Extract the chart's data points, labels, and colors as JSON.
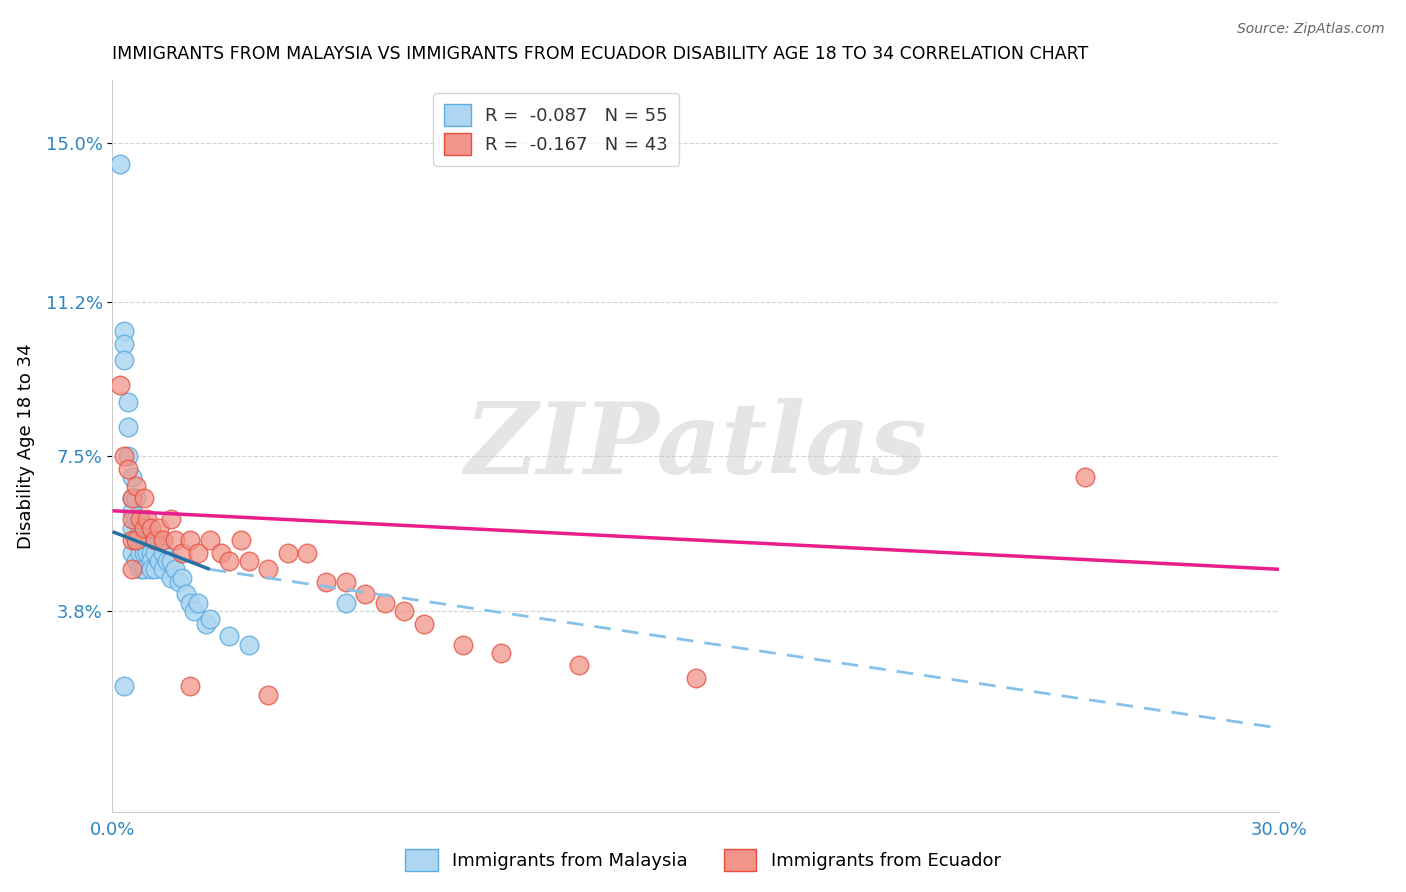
{
  "title": "IMMIGRANTS FROM MALAYSIA VS IMMIGRANTS FROM ECUADOR DISABILITY AGE 18 TO 34 CORRELATION CHART",
  "source": "Source: ZipAtlas.com",
  "ylabel": "Disability Age 18 to 34",
  "xlim": [
    0.0,
    0.3
  ],
  "ylim": [
    -0.01,
    0.165
  ],
  "ytick_positions": [
    0.038,
    0.075,
    0.112,
    0.15
  ],
  "ytick_labels": [
    "3.8%",
    "7.5%",
    "11.2%",
    "15.0%"
  ],
  "malaysia_color": "#AED6F1",
  "ecuador_color": "#F1948A",
  "malaysia_edge": "#5DADE2",
  "ecuador_edge": "#E74C3C",
  "malaysia_line_color": "#2471A3",
  "malaysia_dash_color": "#85C1E9",
  "ecuador_line_color": "#E91E8C",
  "R_malaysia": -0.087,
  "N_malaysia": 55,
  "R_ecuador": -0.167,
  "N_ecuador": 43,
  "legend_labels": [
    "Immigrants from Malaysia",
    "Immigrants from Ecuador"
  ],
  "watermark": "ZIPatlas",
  "malaysia_scatter_x": [
    0.002,
    0.003,
    0.003,
    0.003,
    0.004,
    0.004,
    0.004,
    0.005,
    0.005,
    0.005,
    0.005,
    0.005,
    0.006,
    0.006,
    0.006,
    0.006,
    0.007,
    0.007,
    0.007,
    0.007,
    0.007,
    0.008,
    0.008,
    0.008,
    0.008,
    0.009,
    0.009,
    0.009,
    0.01,
    0.01,
    0.01,
    0.01,
    0.011,
    0.011,
    0.011,
    0.012,
    0.012,
    0.013,
    0.013,
    0.014,
    0.015,
    0.015,
    0.016,
    0.017,
    0.018,
    0.019,
    0.02,
    0.021,
    0.022,
    0.024,
    0.025,
    0.03,
    0.035,
    0.06,
    0.003
  ],
  "malaysia_scatter_y": [
    0.145,
    0.105,
    0.102,
    0.098,
    0.088,
    0.082,
    0.075,
    0.07,
    0.065,
    0.062,
    0.058,
    0.052,
    0.065,
    0.06,
    0.055,
    0.05,
    0.06,
    0.058,
    0.055,
    0.052,
    0.048,
    0.058,
    0.055,
    0.052,
    0.048,
    0.058,
    0.055,
    0.052,
    0.055,
    0.052,
    0.05,
    0.048,
    0.055,
    0.052,
    0.048,
    0.055,
    0.05,
    0.052,
    0.048,
    0.05,
    0.05,
    0.046,
    0.048,
    0.045,
    0.046,
    0.042,
    0.04,
    0.038,
    0.04,
    0.035,
    0.036,
    0.032,
    0.03,
    0.04,
    0.02
  ],
  "ecuador_scatter_x": [
    0.002,
    0.003,
    0.004,
    0.005,
    0.005,
    0.005,
    0.006,
    0.006,
    0.007,
    0.008,
    0.008,
    0.009,
    0.01,
    0.011,
    0.012,
    0.013,
    0.015,
    0.016,
    0.018,
    0.02,
    0.022,
    0.025,
    0.028,
    0.03,
    0.033,
    0.035,
    0.04,
    0.045,
    0.05,
    0.055,
    0.06,
    0.065,
    0.07,
    0.075,
    0.08,
    0.09,
    0.1,
    0.12,
    0.15,
    0.005,
    0.02,
    0.04,
    0.25
  ],
  "ecuador_scatter_y": [
    0.092,
    0.075,
    0.072,
    0.065,
    0.06,
    0.055,
    0.068,
    0.055,
    0.06,
    0.065,
    0.058,
    0.06,
    0.058,
    0.055,
    0.058,
    0.055,
    0.06,
    0.055,
    0.052,
    0.055,
    0.052,
    0.055,
    0.052,
    0.05,
    0.055,
    0.05,
    0.048,
    0.052,
    0.052,
    0.045,
    0.045,
    0.042,
    0.04,
    0.038,
    0.035,
    0.03,
    0.028,
    0.025,
    0.022,
    0.048,
    0.02,
    0.018,
    0.07
  ],
  "trend_malaysia_x0": 0.0,
  "trend_malaysia_y0": 0.057,
  "trend_malaysia_x1": 0.025,
  "trend_malaysia_y1": 0.048,
  "trend_malaysia_dash_x1": 0.3,
  "trend_malaysia_dash_y1": 0.01,
  "trend_ecuador_x0": 0.0,
  "trend_ecuador_y0": 0.062,
  "trend_ecuador_x1": 0.3,
  "trend_ecuador_y1": 0.048
}
